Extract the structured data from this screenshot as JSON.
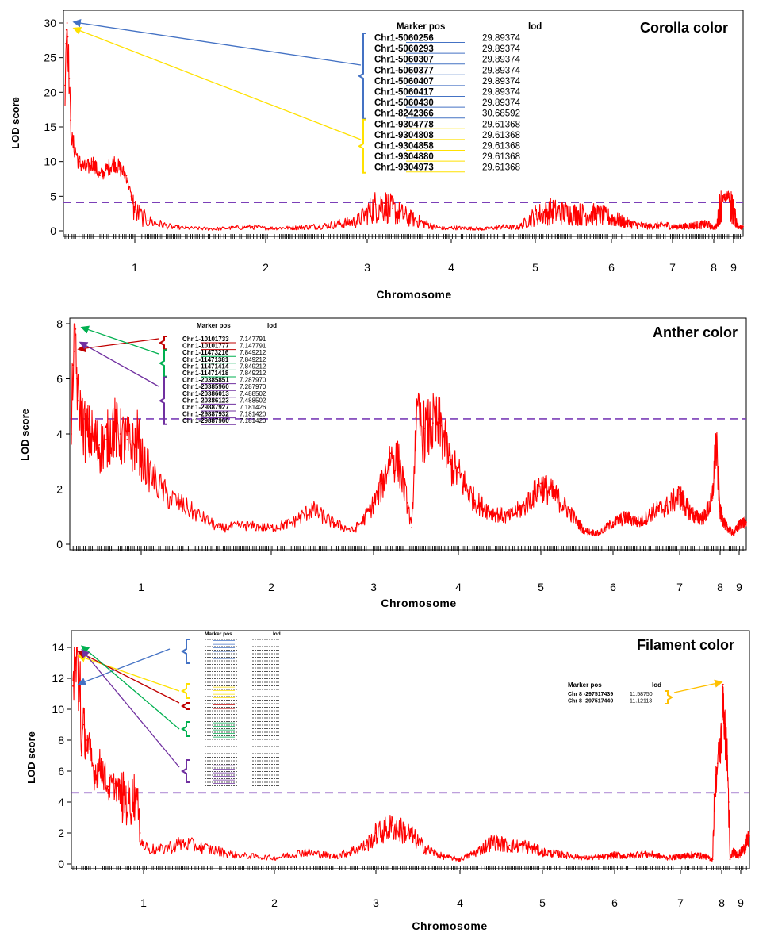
{
  "colors": {
    "lod_line": "#ff0000",
    "threshold": "#7b3fb8",
    "blue": "#4472c4",
    "yellow": "#ffe100",
    "red": "#c00000",
    "green": "#00b050",
    "purple": "#7030a0",
    "orange": "#ffc000"
  },
  "chart_data": [
    {
      "type": "line",
      "title": "Corolla color",
      "xlabel": "Chromosome",
      "ylabel": "LOD score",
      "ylim": [
        0,
        30
      ],
      "y_ticks": [
        0,
        5,
        10,
        15,
        20,
        25,
        30
      ],
      "x_ticks": [
        "1",
        "2",
        "3",
        "4",
        "5",
        "6",
        "7",
        "8",
        "9"
      ],
      "threshold": 4.1,
      "series": [
        {
          "x": [
            0,
            0.01,
            0.02,
            0.03,
            0.04,
            0.06,
            0.08,
            0.1,
            0.14,
            0.2,
            0.3,
            0.4,
            0.5,
            0.6,
            0.7,
            0.8,
            0.88,
            0.95,
            1.0,
            1.1,
            1.3,
            1.6,
            1.9,
            2.0,
            2.3,
            2.6,
            2.9,
            3.0,
            3.1,
            3.2,
            3.3,
            3.5,
            3.8,
            3.95,
            4.0,
            4.2,
            4.4,
            4.6,
            4.8,
            5.0,
            5.2,
            5.5,
            5.8,
            6.0,
            6.3,
            6.6,
            6.9,
            7.0,
            7.3,
            7.6,
            7.85,
            7.9,
            7.95,
            8.0,
            8.1,
            8.2,
            8.3,
            8.5,
            8.7,
            8.85,
            8.9,
            9.0
          ],
          "y": [
            21,
            27,
            29,
            30.7,
            28,
            22,
            16,
            13,
            12,
            10,
            9,
            10,
            8,
            9,
            10,
            9,
            8,
            5,
            3,
            1.5,
            0.5,
            0.3,
            0.6,
            0.4,
            0.5,
            0.8,
            1.5,
            2.8,
            3.8,
            4.0,
            3.2,
            2.0,
            0.6,
            0.3,
            0.5,
            0.4,
            0.3,
            0.6,
            0.5,
            2.4,
            3.0,
            2.6,
            2.5,
            2.0,
            1.1,
            0.7,
            0.9,
            0.6,
            0.7,
            0.9,
            1.0,
            0.8,
            0.6,
            0.5,
            0.7,
            3.5,
            4.6,
            5.2,
            2.5,
            0.4,
            0.8,
            0.6
          ]
        }
      ],
      "table": {
        "header": [
          "Marker pos",
          "lod"
        ],
        "rows": [
          {
            "marker": "Chr1-5060256",
            "lod": "29.89374",
            "group": "blue"
          },
          {
            "marker": "Chr1-5060293",
            "lod": "29.89374",
            "group": "blue"
          },
          {
            "marker": "Chr1-5060307",
            "lod": "29.89374",
            "group": "blue"
          },
          {
            "marker": "Chr1-5060377",
            "lod": "29.89374",
            "group": "blue"
          },
          {
            "marker": "Chr1-5060407",
            "lod": "29.89374",
            "group": "blue"
          },
          {
            "marker": "Chr1-5060417",
            "lod": "29.89374",
            "group": "blue"
          },
          {
            "marker": "Chr1-5060430",
            "lod": "29.89374",
            "group": "blue"
          },
          {
            "marker": "Chr1-8242366",
            "lod": "30.68592",
            "group": "blue"
          },
          {
            "marker": "Chr1-9304778",
            "lod": "29.61368",
            "group": "yellow"
          },
          {
            "marker": "Chr1-9304808",
            "lod": "29.61368",
            "group": "yellow"
          },
          {
            "marker": "Chr1-9304858",
            "lod": "29.61368",
            "group": "yellow"
          },
          {
            "marker": "Chr1-9304880",
            "lod": "29.61368",
            "group": "yellow"
          },
          {
            "marker": "Chr1-9304973",
            "lod": "29.61368",
            "group": "yellow"
          }
        ]
      }
    },
    {
      "type": "line",
      "title": "Anther color",
      "xlabel": "Chromosome",
      "ylabel": "LOD score",
      "ylim": [
        0,
        8
      ],
      "y_ticks": [
        0,
        2,
        4,
        6,
        8
      ],
      "x_ticks": [
        "1",
        "2",
        "3",
        "4",
        "5",
        "6",
        "7",
        "8",
        "9"
      ],
      "threshold": 4.55,
      "series": [
        {
          "x": [
            0,
            0.02,
            0.04,
            0.06,
            0.08,
            0.1,
            0.15,
            0.2,
            0.3,
            0.4,
            0.5,
            0.6,
            0.7,
            0.8,
            0.9,
            0.95,
            1.0,
            1.1,
            1.2,
            1.4,
            1.6,
            1.8,
            2.0,
            2.2,
            2.4,
            2.6,
            2.8,
            2.9,
            3.0,
            3.1,
            3.2,
            3.3,
            3.4,
            3.45,
            3.5,
            3.6,
            3.7,
            3.8,
            3.9,
            4.0,
            4.2,
            4.4,
            4.6,
            4.8,
            5.0,
            5.2,
            5.4,
            5.6,
            5.8,
            6.0,
            6.2,
            6.4,
            6.6,
            6.8,
            7.0,
            7.2,
            7.4,
            7.6,
            7.8,
            7.9,
            8.0,
            8.2,
            8.5,
            8.8,
            9.0
          ],
          "y": [
            4,
            6.5,
            7.0,
            7.8,
            6.0,
            5.2,
            4.8,
            4.2,
            4.0,
            3.6,
            3.8,
            4.4,
            4.0,
            3.8,
            3.6,
            4.0,
            3.2,
            2.4,
            1.8,
            1.2,
            0.6,
            0.7,
            0.6,
            0.8,
            1.3,
            0.8,
            0.5,
            0.9,
            1.5,
            2.2,
            3.3,
            3.0,
            1.5,
            0.6,
            4.6,
            4.2,
            4.4,
            4.3,
            3.0,
            2.6,
            1.6,
            1.2,
            1.0,
            1.4,
            2.2,
            1.8,
            1.2,
            0.5,
            0.4,
            0.8,
            1.0,
            0.8,
            1.2,
            1.4,
            1.8,
            1.3,
            1.0,
            1.0,
            1.6,
            3.8,
            1.2,
            0.7,
            0.4,
            0.8,
            0.8
          ]
        }
      ],
      "table": {
        "header": [
          "Marker pos",
          "lod"
        ],
        "rows": [
          {
            "marker": "Chr 1-10101733",
            "lod": "7.147791",
            "group": "red"
          },
          {
            "marker": "Chr 1-10101777",
            "lod": "7.147791",
            "group": "red"
          },
          {
            "marker": "Chr 1-11473216",
            "lod": "7.849212",
            "group": "green"
          },
          {
            "marker": "Chr 1-11471381",
            "lod": "7.849212",
            "group": "green"
          },
          {
            "marker": "Chr 1-11471414",
            "lod": "7.849212",
            "group": "green"
          },
          {
            "marker": "Chr 1-11471418",
            "lod": "7.849212",
            "group": "green"
          },
          {
            "marker": "Chr 1-20385851",
            "lod": "7.287970",
            "group": "purple"
          },
          {
            "marker": "Chr 1-20385960",
            "lod": "7.287970",
            "group": "purple"
          },
          {
            "marker": "Chr 1-20386013",
            "lod": "7.488502",
            "group": "purple"
          },
          {
            "marker": "Chr 1-20386123",
            "lod": "7.488502",
            "group": "purple"
          },
          {
            "marker": "Chr 1-29887927",
            "lod": "7.181426",
            "group": "purple"
          },
          {
            "marker": "Chr 1-29887932",
            "lod": "7.181420",
            "group": "purple"
          },
          {
            "marker": "Chr 1-29887960",
            "lod": "7.181420",
            "group": "purple"
          }
        ]
      }
    },
    {
      "type": "line",
      "title": "Filament color",
      "xlabel": "Chromosome",
      "ylabel": "LOD score",
      "ylim": [
        0,
        14
      ],
      "y_ticks": [
        0,
        2,
        4,
        6,
        8,
        10,
        12,
        14
      ],
      "x_ticks": [
        "1",
        "2",
        "3",
        "4",
        "5",
        "6",
        "7",
        "8",
        "9"
      ],
      "threshold": 4.6,
      "series": [
        {
          "x": [
            0,
            0.02,
            0.04,
            0.06,
            0.08,
            0.1,
            0.12,
            0.15,
            0.2,
            0.3,
            0.4,
            0.5,
            0.6,
            0.7,
            0.8,
            0.9,
            0.95,
            1.0,
            1.1,
            1.3,
            1.5,
            1.7,
            2.0,
            2.3,
            2.6,
            2.9,
            3.0,
            3.2,
            3.4,
            3.6,
            3.8,
            4.0,
            4.2,
            4.4,
            4.6,
            4.8,
            5.0,
            5.3,
            5.6,
            5.9,
            6.0,
            6.2,
            6.4,
            6.6,
            6.8,
            7.0,
            7.3,
            7.6,
            7.78,
            7.82,
            7.9,
            8.0,
            8.05,
            8.1,
            8.2,
            8.25,
            8.3,
            8.4,
            8.6,
            8.8,
            9.0
          ],
          "y": [
            11.5,
            13.8,
            12.5,
            14.0,
            10.5,
            13.5,
            7.0,
            9.0,
            8.0,
            6.0,
            6.5,
            5.0,
            5.2,
            4.5,
            4.0,
            4.8,
            2.0,
            1.2,
            0.9,
            1.4,
            1.0,
            0.6,
            0.4,
            0.8,
            0.5,
            1.2,
            2.0,
            2.5,
            2.0,
            1.0,
            0.5,
            0.3,
            0.8,
            1.5,
            1.2,
            1.2,
            0.8,
            0.6,
            0.4,
            0.5,
            0.6,
            0.5,
            0.7,
            0.6,
            0.4,
            0.5,
            0.6,
            0.5,
            0.3,
            4.5,
            6.5,
            8.5,
            11.6,
            9.0,
            7.0,
            4.0,
            0.3,
            0.8,
            0.6,
            1.0,
            1.8
          ]
        }
      ],
      "table_right": {
        "header": [
          "Marker pos",
          "lod"
        ],
        "rows": [
          {
            "marker": "Chr 8 -297517439",
            "lod": "11.58750",
            "group": "orange"
          },
          {
            "marker": "Chr 8 -297517440",
            "lod": "11.12113",
            "group": "orange"
          }
        ]
      }
    }
  ]
}
